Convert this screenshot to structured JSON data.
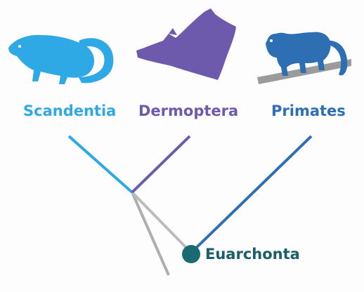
{
  "taxa": {
    "scandentia": {
      "name": "Scandentia",
      "color": "#2fa9e6",
      "icon": "treeshrew-silhouette-icon"
    },
    "dermoptera": {
      "name": "Dermoptera",
      "color": "#6e5aad",
      "icon": "colugo-silhouette-icon"
    },
    "primates": {
      "name": "Primates",
      "color": "#2e6fb4",
      "icon": "monkey-silhouette-icon"
    }
  },
  "clade": {
    "name": "Euarchonta",
    "node_color": "#1b6a73",
    "label_color": "#1b5e67"
  },
  "colors": {
    "stem": "#aeaeae",
    "branch_light": "#bcbcbc",
    "background": "#fdfdfd"
  }
}
